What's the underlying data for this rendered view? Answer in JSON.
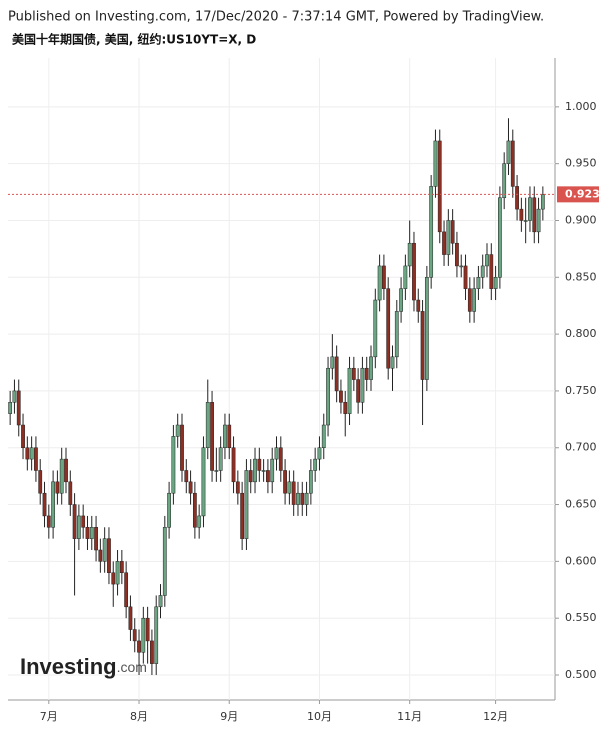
{
  "chart_data": {
    "type": "candlestick",
    "published": "Published on Investing.com, 17/Dec/2020 - 7:37:14 GMT, Powered by TradingView.",
    "title": "美国十年期国债, 美国, 纽约:US10YT=X, D",
    "logo": {
      "brand": "Investing",
      "suffix": ".com"
    },
    "up_color": "#6ba583",
    "down_color": "#8e2f24",
    "wick_color": "#222222",
    "grid": true,
    "ylim": [
      0.478,
      1.043
    ],
    "yticks": [
      {
        "value": 0.5,
        "label": "0.500"
      },
      {
        "value": 0.55,
        "label": "0.550"
      },
      {
        "value": 0.6,
        "label": "0.600"
      },
      {
        "value": 0.65,
        "label": "0.650"
      },
      {
        "value": 0.7,
        "label": "0.700"
      },
      {
        "value": 0.75,
        "label": "0.750"
      },
      {
        "value": 0.8,
        "label": "0.800"
      },
      {
        "value": 0.85,
        "label": "0.850"
      },
      {
        "value": 0.9,
        "label": "0.900"
      },
      {
        "value": 0.95,
        "label": "0.950"
      },
      {
        "value": 1.0,
        "label": "1.000"
      }
    ],
    "last_price": {
      "value": 0.923,
      "label": "0.923",
      "color": "#d9534f"
    },
    "categories": [
      null,
      null,
      null,
      null,
      null,
      null,
      null,
      null,
      null,
      "7月",
      null,
      null,
      null,
      null,
      null,
      null,
      null,
      null,
      null,
      null,
      null,
      null,
      null,
      null,
      null,
      null,
      null,
      null,
      null,
      null,
      "8月",
      null,
      null,
      null,
      null,
      null,
      null,
      null,
      null,
      null,
      null,
      null,
      null,
      null,
      null,
      null,
      null,
      null,
      null,
      null,
      null,
      "9月",
      null,
      null,
      null,
      null,
      null,
      null,
      null,
      null,
      null,
      null,
      null,
      null,
      null,
      null,
      null,
      null,
      null,
      null,
      null,
      null,
      "10月",
      null,
      null,
      null,
      null,
      null,
      null,
      null,
      null,
      null,
      null,
      null,
      null,
      null,
      null,
      null,
      null,
      null,
      null,
      null,
      null,
      "11月",
      null,
      null,
      null,
      null,
      null,
      null,
      null,
      null,
      null,
      null,
      null,
      null,
      null,
      null,
      null,
      null,
      null,
      null,
      null,
      "12月",
      null,
      null,
      null,
      null,
      null,
      null,
      null,
      null,
      null,
      null,
      null
    ],
    "ohlc": [
      [
        0.73,
        0.75,
        0.72,
        0.74
      ],
      [
        0.74,
        0.76,
        0.73,
        0.75
      ],
      [
        0.75,
        0.76,
        0.71,
        0.72
      ],
      [
        0.72,
        0.73,
        0.69,
        0.7
      ],
      [
        0.7,
        0.71,
        0.68,
        0.69
      ],
      [
        0.69,
        0.71,
        0.68,
        0.7
      ],
      [
        0.7,
        0.71,
        0.67,
        0.68
      ],
      [
        0.68,
        0.69,
        0.65,
        0.66
      ],
      [
        0.66,
        0.67,
        0.63,
        0.64
      ],
      [
        0.64,
        0.65,
        0.62,
        0.63
      ],
      [
        0.63,
        0.68,
        0.62,
        0.67
      ],
      [
        0.67,
        0.68,
        0.65,
        0.66
      ],
      [
        0.66,
        0.7,
        0.65,
        0.69
      ],
      [
        0.69,
        0.7,
        0.66,
        0.67
      ],
      [
        0.67,
        0.68,
        0.64,
        0.65
      ],
      [
        0.65,
        0.66,
        0.57,
        0.62
      ],
      [
        0.62,
        0.65,
        0.61,
        0.64
      ],
      [
        0.64,
        0.65,
        0.62,
        0.63
      ],
      [
        0.63,
        0.64,
        0.61,
        0.62
      ],
      [
        0.62,
        0.64,
        0.61,
        0.63
      ],
      [
        0.63,
        0.64,
        0.6,
        0.61
      ],
      [
        0.61,
        0.62,
        0.59,
        0.6
      ],
      [
        0.6,
        0.63,
        0.59,
        0.62
      ],
      [
        0.62,
        0.63,
        0.58,
        0.59
      ],
      [
        0.59,
        0.6,
        0.56,
        0.58
      ],
      [
        0.58,
        0.61,
        0.57,
        0.6
      ],
      [
        0.6,
        0.61,
        0.58,
        0.59
      ],
      [
        0.59,
        0.6,
        0.55,
        0.56
      ],
      [
        0.56,
        0.57,
        0.53,
        0.54
      ],
      [
        0.54,
        0.55,
        0.52,
        0.53
      ],
      [
        0.53,
        0.54,
        0.5,
        0.52
      ],
      [
        0.52,
        0.56,
        0.51,
        0.55
      ],
      [
        0.55,
        0.56,
        0.51,
        0.53
      ],
      [
        0.53,
        0.54,
        0.5,
        0.51
      ],
      [
        0.51,
        0.57,
        0.5,
        0.56
      ],
      [
        0.56,
        0.58,
        0.55,
        0.57
      ],
      [
        0.57,
        0.64,
        0.56,
        0.63
      ],
      [
        0.63,
        0.67,
        0.62,
        0.66
      ],
      [
        0.66,
        0.72,
        0.65,
        0.71
      ],
      [
        0.71,
        0.73,
        0.7,
        0.72
      ],
      [
        0.72,
        0.73,
        0.67,
        0.68
      ],
      [
        0.68,
        0.69,
        0.66,
        0.67
      ],
      [
        0.67,
        0.68,
        0.65,
        0.66
      ],
      [
        0.66,
        0.67,
        0.62,
        0.63
      ],
      [
        0.63,
        0.65,
        0.62,
        0.64
      ],
      [
        0.64,
        0.71,
        0.63,
        0.7
      ],
      [
        0.7,
        0.76,
        0.69,
        0.74
      ],
      [
        0.74,
        0.75,
        0.67,
        0.68
      ],
      [
        0.68,
        0.7,
        0.67,
        0.68
      ],
      [
        0.68,
        0.71,
        0.67,
        0.7
      ],
      [
        0.7,
        0.73,
        0.69,
        0.72
      ],
      [
        0.72,
        0.73,
        0.69,
        0.7
      ],
      [
        0.7,
        0.71,
        0.66,
        0.67
      ],
      [
        0.67,
        0.68,
        0.65,
        0.66
      ],
      [
        0.66,
        0.67,
        0.61,
        0.62
      ],
      [
        0.62,
        0.69,
        0.61,
        0.68
      ],
      [
        0.68,
        0.69,
        0.66,
        0.67
      ],
      [
        0.67,
        0.7,
        0.66,
        0.69
      ],
      [
        0.69,
        0.7,
        0.67,
        0.68
      ],
      [
        0.68,
        0.69,
        0.67,
        0.68
      ],
      [
        0.68,
        0.69,
        0.66,
        0.67
      ],
      [
        0.67,
        0.7,
        0.66,
        0.69
      ],
      [
        0.69,
        0.71,
        0.68,
        0.7
      ],
      [
        0.7,
        0.71,
        0.67,
        0.68
      ],
      [
        0.68,
        0.69,
        0.65,
        0.66
      ],
      [
        0.66,
        0.68,
        0.65,
        0.67
      ],
      [
        0.67,
        0.68,
        0.64,
        0.65
      ],
      [
        0.65,
        0.67,
        0.64,
        0.66
      ],
      [
        0.66,
        0.67,
        0.64,
        0.65
      ],
      [
        0.65,
        0.67,
        0.64,
        0.66
      ],
      [
        0.66,
        0.69,
        0.65,
        0.68
      ],
      [
        0.68,
        0.7,
        0.67,
        0.69
      ],
      [
        0.69,
        0.71,
        0.68,
        0.7
      ],
      [
        0.7,
        0.73,
        0.69,
        0.72
      ],
      [
        0.72,
        0.78,
        0.71,
        0.77
      ],
      [
        0.77,
        0.8,
        0.76,
        0.78
      ],
      [
        0.78,
        0.79,
        0.74,
        0.75
      ],
      [
        0.75,
        0.76,
        0.73,
        0.74
      ],
      [
        0.74,
        0.75,
        0.71,
        0.73
      ],
      [
        0.73,
        0.78,
        0.72,
        0.77
      ],
      [
        0.77,
        0.78,
        0.75,
        0.76
      ],
      [
        0.76,
        0.77,
        0.73,
        0.74
      ],
      [
        0.74,
        0.78,
        0.73,
        0.77
      ],
      [
        0.77,
        0.78,
        0.75,
        0.76
      ],
      [
        0.76,
        0.79,
        0.75,
        0.78
      ],
      [
        0.78,
        0.84,
        0.77,
        0.83
      ],
      [
        0.83,
        0.87,
        0.82,
        0.86
      ],
      [
        0.86,
        0.87,
        0.83,
        0.84
      ],
      [
        0.84,
        0.85,
        0.76,
        0.77
      ],
      [
        0.77,
        0.79,
        0.75,
        0.78
      ],
      [
        0.78,
        0.83,
        0.77,
        0.82
      ],
      [
        0.82,
        0.85,
        0.81,
        0.84
      ],
      [
        0.84,
        0.87,
        0.83,
        0.86
      ],
      [
        0.86,
        0.9,
        0.85,
        0.88
      ],
      [
        0.88,
        0.89,
        0.82,
        0.83
      ],
      [
        0.83,
        0.84,
        0.81,
        0.82
      ],
      [
        0.82,
        0.83,
        0.72,
        0.76
      ],
      [
        0.76,
        0.86,
        0.75,
        0.85
      ],
      [
        0.85,
        0.94,
        0.84,
        0.93
      ],
      [
        0.93,
        0.98,
        0.92,
        0.97
      ],
      [
        0.97,
        0.98,
        0.88,
        0.89
      ],
      [
        0.89,
        0.9,
        0.86,
        0.87
      ],
      [
        0.87,
        0.91,
        0.86,
        0.9
      ],
      [
        0.9,
        0.91,
        0.87,
        0.88
      ],
      [
        0.88,
        0.89,
        0.85,
        0.86
      ],
      [
        0.86,
        0.87,
        0.85,
        0.86
      ],
      [
        0.86,
        0.87,
        0.83,
        0.84
      ],
      [
        0.84,
        0.85,
        0.81,
        0.82
      ],
      [
        0.82,
        0.85,
        0.81,
        0.84
      ],
      [
        0.84,
        0.86,
        0.83,
        0.85
      ],
      [
        0.85,
        0.87,
        0.84,
        0.86
      ],
      [
        0.86,
        0.88,
        0.85,
        0.87
      ],
      [
        0.87,
        0.88,
        0.83,
        0.84
      ],
      [
        0.84,
        0.86,
        0.83,
        0.85
      ],
      [
        0.85,
        0.93,
        0.84,
        0.92
      ],
      [
        0.92,
        0.96,
        0.91,
        0.95
      ],
      [
        0.95,
        0.99,
        0.94,
        0.97
      ],
      [
        0.97,
        0.98,
        0.92,
        0.93
      ],
      [
        0.93,
        0.94,
        0.9,
        0.91
      ],
      [
        0.91,
        0.92,
        0.89,
        0.9
      ],
      [
        0.9,
        0.92,
        0.88,
        0.9
      ],
      [
        0.9,
        0.93,
        0.89,
        0.92
      ],
      [
        0.92,
        0.93,
        0.88,
        0.89
      ],
      [
        0.89,
        0.92,
        0.88,
        0.91
      ],
      [
        0.91,
        0.93,
        0.9,
        0.923
      ]
    ]
  }
}
